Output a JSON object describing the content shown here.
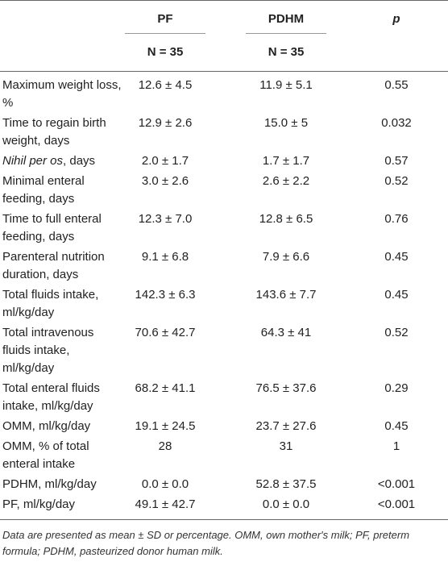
{
  "table": {
    "header": [
      "PF",
      "PDHM",
      "p"
    ],
    "subheader": [
      "N = 35",
      "N = 35"
    ],
    "rows": [
      [
        "Maximum weight loss, %",
        "12.6 ± 4.5",
        "11.9 ± 5.1",
        "0.55"
      ],
      [
        "Time to regain birth weight, days",
        "12.9 ± 2.6",
        "15.0 ± 5",
        "0.032"
      ],
      [
        {
          "italic": "Nihil per os",
          "rest": ", days"
        },
        "2.0 ± 1.7",
        "1.7 ± 1.7",
        "0.57"
      ],
      [
        "Minimal enteral feeding, days",
        "3.0 ± 2.6",
        "2.6 ± 2.2",
        "0.52"
      ],
      [
        "Time to full enteral feeding, days",
        "12.3 ± 7.0",
        "12.8 ± 6.5",
        "0.76"
      ],
      [
        "Parenteral nutrition duration, days",
        "9.1 ± 6.8",
        "7.9 ± 6.6",
        "0.45"
      ],
      [
        "Total fluids intake, ml/kg/day",
        "142.3 ± 6.3",
        "143.6 ± 7.7",
        "0.45"
      ],
      [
        "Total intravenous fluids intake, ml/kg/day",
        "70.6 ± 42.7",
        "64.3 ± 41",
        "0.52"
      ],
      [
        "Total enteral fluids intake, ml/kg/day",
        "68.2 ± 41.1",
        "76.5 ± 37.6",
        "0.29"
      ],
      [
        "OMM, ml/kg/day",
        "19.1 ± 24.5",
        "23.7 ± 27.6",
        "0.45"
      ],
      [
        "OMM, % of total enteral intake",
        "28",
        "31",
        "1"
      ],
      [
        "PDHM, ml/kg/day",
        "0.0 ± 0.0",
        "52.8 ± 37.5",
        "<0.001"
      ],
      [
        "PF, ml/kg/day",
        "49.1 ± 42.7",
        "0.0 ± 0.0",
        "<0.001"
      ]
    ]
  },
  "footnote": "Data are presented as mean ± SD or percentage. OMM, own mother's milk; PF, preterm formula; PDHM, pasteurized donor human milk."
}
